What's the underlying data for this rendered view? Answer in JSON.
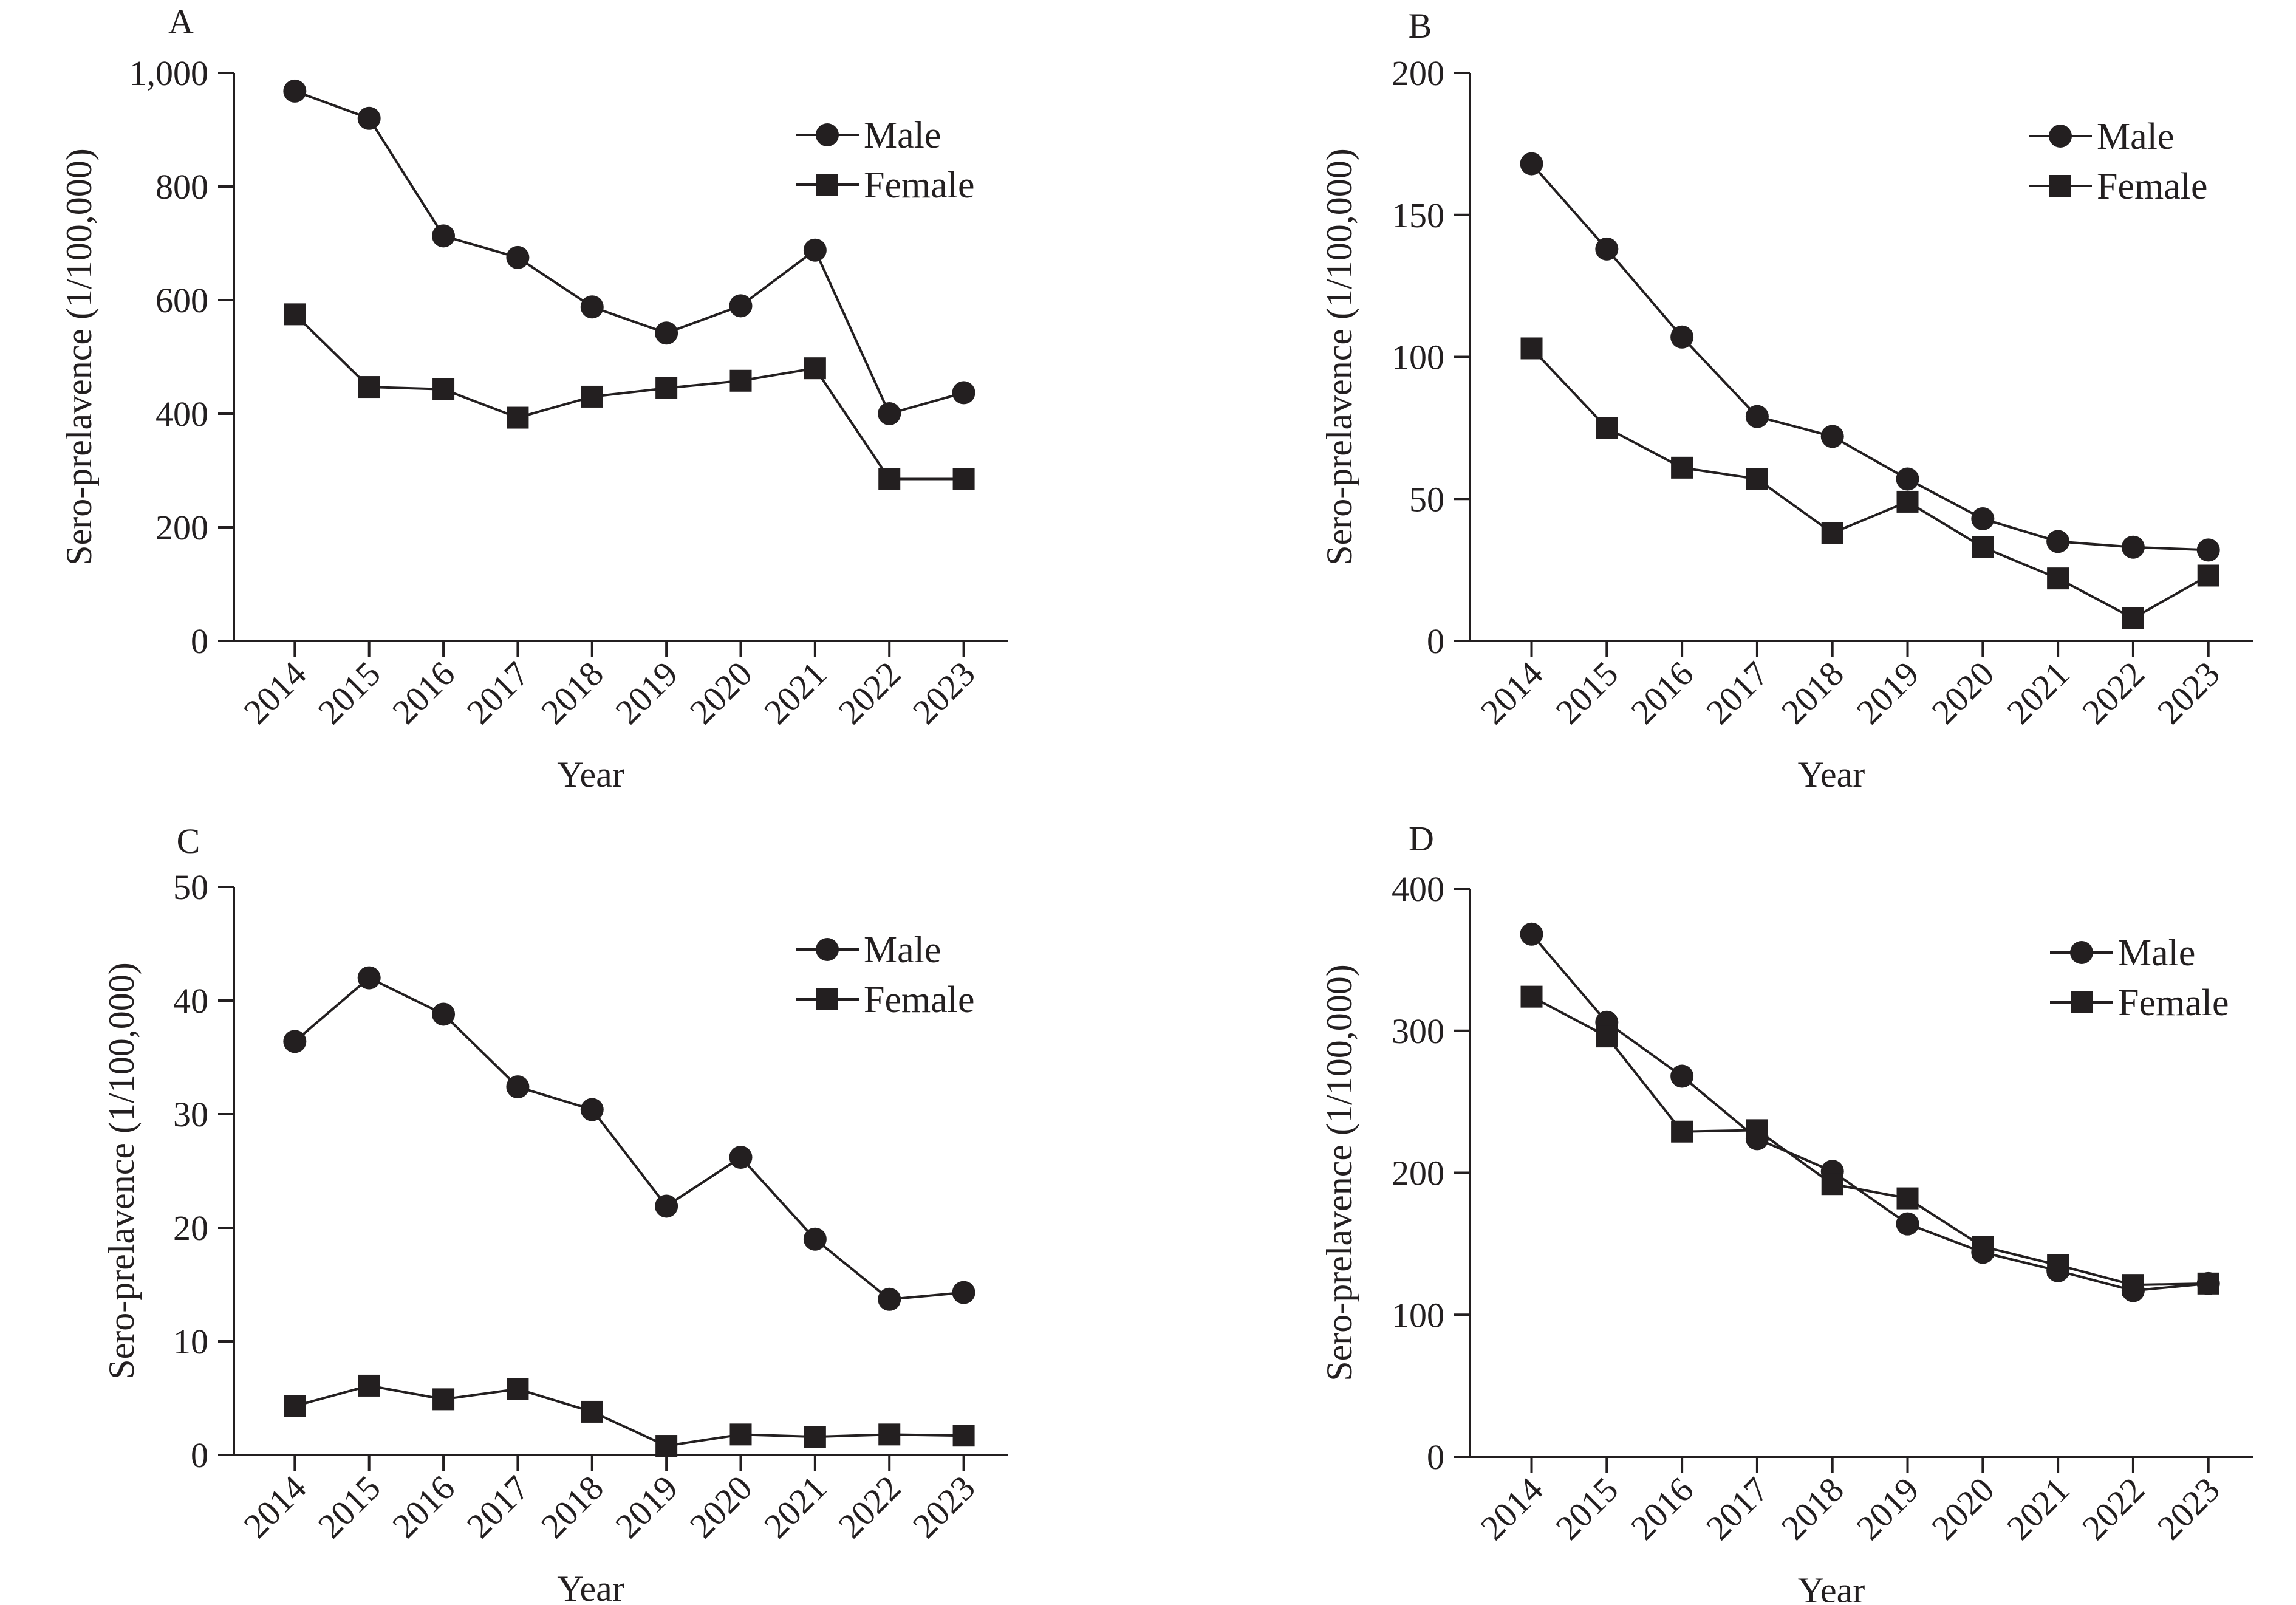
{
  "chart_data": [
    {
      "panel": "A",
      "type": "line",
      "categories": [
        "2014",
        "2015",
        "2016",
        "2017",
        "2018",
        "2019",
        "2020",
        "2021",
        "2022",
        "2023"
      ],
      "xlabel": "Year",
      "ylabel": "Sero-prelavence (1/100,000)",
      "ylim": [
        0,
        1000
      ],
      "yticks": [
        0,
        200,
        400,
        600,
        800,
        1000
      ],
      "ytick_labels": [
        "0",
        "200",
        "400",
        "600",
        "800",
        "1,000"
      ],
      "legend_position": "top-right",
      "grid": false,
      "series": [
        {
          "name": "Male",
          "marker": "circle",
          "values": [
            968,
            920,
            713,
            675,
            588,
            542,
            590,
            688,
            400,
            437
          ]
        },
        {
          "name": "Female",
          "marker": "square",
          "values": [
            575,
            447,
            443,
            393,
            430,
            445,
            458,
            480,
            285,
            285
          ]
        }
      ]
    },
    {
      "panel": "B",
      "type": "line",
      "categories": [
        "2014",
        "2015",
        "2016",
        "2017",
        "2018",
        "2019",
        "2020",
        "2021",
        "2022",
        "2023"
      ],
      "xlabel": "Year",
      "ylabel": "Sero-prelavence (1/100,000)",
      "ylim": [
        0,
        200
      ],
      "yticks": [
        0,
        50,
        100,
        150,
        200
      ],
      "ytick_labels": [
        "0",
        "50",
        "100",
        "150",
        "200"
      ],
      "legend_position": "top-right",
      "grid": false,
      "series": [
        {
          "name": "Male",
          "marker": "circle",
          "values": [
            168,
            138,
            107,
            79,
            72,
            57,
            43,
            35,
            33,
            32
          ]
        },
        {
          "name": "Female",
          "marker": "square",
          "values": [
            103,
            75,
            61,
            57,
            38,
            49,
            33,
            22,
            8,
            23
          ]
        }
      ]
    },
    {
      "panel": "C",
      "type": "line",
      "categories": [
        "2014",
        "2015",
        "2016",
        "2017",
        "2018",
        "2019",
        "2020",
        "2021",
        "2022",
        "2023"
      ],
      "xlabel": "Year",
      "ylabel": "Sero-prelavence (1/100,000)",
      "ylim": [
        0,
        50
      ],
      "yticks": [
        0,
        10,
        20,
        30,
        40,
        50
      ],
      "ytick_labels": [
        "0",
        "10",
        "20",
        "30",
        "40",
        "50"
      ],
      "legend_position": "top-right",
      "grid": false,
      "series": [
        {
          "name": "Male",
          "marker": "circle",
          "values": [
            36.4,
            42.0,
            38.8,
            32.4,
            30.4,
            21.9,
            26.2,
            19.0,
            13.7,
            14.3
          ]
        },
        {
          "name": "Female",
          "marker": "square",
          "values": [
            4.3,
            6.1,
            4.9,
            5.8,
            3.8,
            0.8,
            1.8,
            1.6,
            1.8,
            1.7
          ]
        }
      ]
    },
    {
      "panel": "D",
      "type": "line",
      "categories": [
        "2014",
        "2015",
        "2016",
        "2017",
        "2018",
        "2019",
        "2020",
        "2021",
        "2022",
        "2023"
      ],
      "xlabel": "Year",
      "ylabel": "Sero-prelavence (1/100,000)",
      "ylim": [
        0,
        400
      ],
      "yticks": [
        0,
        100,
        200,
        300,
        400
      ],
      "ytick_labels": [
        "0",
        "100",
        "200",
        "300",
        "400"
      ],
      "legend_position": "top-right",
      "grid": false,
      "series": [
        {
          "name": "Male",
          "marker": "circle",
          "values": [
            368,
            306,
            268,
            224,
            201,
            164,
            144,
            131,
            117,
            122
          ]
        },
        {
          "name": "Female",
          "marker": "square",
          "values": [
            324,
            296,
            229,
            230,
            192,
            182,
            148,
            135,
            121,
            122
          ]
        }
      ]
    }
  ]
}
